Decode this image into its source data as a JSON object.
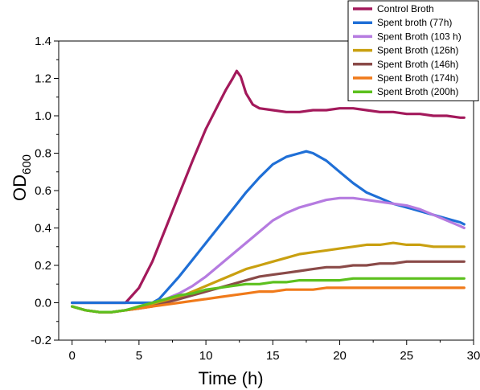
{
  "chart_data": {
    "type": "line",
    "title": "",
    "xlabel": "Time (h)",
    "ylabel_main": "OD",
    "ylabel_sub": "600",
    "xlim": [
      -1,
      30
    ],
    "ylim": [
      -0.2,
      1.4
    ],
    "xticks": [
      0,
      5,
      10,
      15,
      20,
      25,
      30
    ],
    "yticks": [
      -0.2,
      0.0,
      0.2,
      0.4,
      0.6,
      0.8,
      1.0,
      1.2,
      1.4
    ],
    "xtick_labels": [
      "0",
      "5",
      "10",
      "15",
      "20",
      "25",
      "30"
    ],
    "ytick_labels": [
      "-0.2",
      "0.0",
      "0.2",
      "0.4",
      "0.6",
      "0.8",
      "1.0",
      "1.2",
      "1.4"
    ],
    "grid": false,
    "legend_position": "top-right",
    "series": [
      {
        "name": "Control Broth",
        "color": "#a3195b",
        "x": [
          0,
          1,
          2,
          3,
          4,
          5,
          6,
          7,
          8,
          9,
          10,
          11,
          11.5,
          12,
          12.3,
          12.6,
          13,
          13.5,
          14,
          15,
          16,
          17,
          18,
          19,
          20,
          21,
          22,
          23,
          24,
          25,
          26,
          27,
          28,
          29,
          29.3
        ],
        "y": [
          0,
          0,
          0,
          0,
          0,
          0.08,
          0.22,
          0.4,
          0.58,
          0.76,
          0.93,
          1.07,
          1.14,
          1.2,
          1.24,
          1.21,
          1.12,
          1.06,
          1.04,
          1.03,
          1.02,
          1.02,
          1.03,
          1.03,
          1.04,
          1.04,
          1.03,
          1.02,
          1.02,
          1.01,
          1.01,
          1.0,
          1.0,
          0.99,
          0.99
        ]
      },
      {
        "name": "Spent broth (77h)",
        "color": "#1f6fd6",
        "x": [
          0,
          1,
          2,
          3,
          4,
          5,
          6,
          6.5,
          7,
          8,
          9,
          10,
          11,
          12,
          13,
          14,
          15,
          16,
          17,
          17.5,
          18,
          19,
          20,
          21,
          22,
          23,
          24,
          25,
          26,
          27,
          28,
          29,
          29.3
        ],
        "y": [
          0,
          0,
          0,
          0,
          0,
          0,
          0,
          0.02,
          0.06,
          0.14,
          0.23,
          0.32,
          0.41,
          0.5,
          0.59,
          0.67,
          0.74,
          0.78,
          0.8,
          0.81,
          0.8,
          0.76,
          0.7,
          0.64,
          0.59,
          0.56,
          0.53,
          0.51,
          0.49,
          0.47,
          0.45,
          0.43,
          0.42
        ]
      },
      {
        "name": "Spent Broth (103 h)",
        "color": "#b57be0",
        "x": [
          0,
          1,
          2,
          3,
          4,
          5,
          6,
          7,
          8,
          9,
          10,
          11,
          12,
          13,
          14,
          15,
          16,
          17,
          18,
          19,
          20,
          21,
          22,
          23,
          24,
          25,
          26,
          27,
          28,
          29,
          29.3
        ],
        "y": [
          -0.02,
          -0.04,
          -0.05,
          -0.05,
          -0.04,
          -0.02,
          0.0,
          0.02,
          0.05,
          0.09,
          0.14,
          0.2,
          0.26,
          0.32,
          0.38,
          0.44,
          0.48,
          0.51,
          0.53,
          0.55,
          0.56,
          0.56,
          0.55,
          0.54,
          0.53,
          0.52,
          0.5,
          0.47,
          0.44,
          0.41,
          0.4
        ]
      },
      {
        "name": "Spent Broth (126h)",
        "color": "#c9a010",
        "x": [
          0,
          1,
          2,
          3,
          4,
          5,
          6,
          7,
          8,
          9,
          10,
          11,
          12,
          13,
          14,
          15,
          16,
          17,
          18,
          19,
          20,
          21,
          22,
          23,
          24,
          25,
          26,
          27,
          28,
          29,
          29.3
        ],
        "y": [
          -0.02,
          -0.04,
          -0.05,
          -0.05,
          -0.04,
          -0.03,
          -0.01,
          0.01,
          0.03,
          0.06,
          0.09,
          0.12,
          0.15,
          0.18,
          0.2,
          0.22,
          0.24,
          0.26,
          0.27,
          0.28,
          0.29,
          0.3,
          0.31,
          0.31,
          0.32,
          0.31,
          0.31,
          0.3,
          0.3,
          0.3,
          0.3
        ]
      },
      {
        "name": "Spent Broth (146h)",
        "color": "#8a4a48",
        "x": [
          0,
          1,
          2,
          3,
          4,
          5,
          6,
          7,
          8,
          9,
          10,
          11,
          12,
          13,
          14,
          15,
          16,
          17,
          18,
          19,
          20,
          21,
          22,
          23,
          24,
          25,
          26,
          27,
          28,
          29,
          29.3
        ],
        "y": [
          -0.02,
          -0.04,
          -0.05,
          -0.05,
          -0.04,
          -0.03,
          -0.02,
          0.0,
          0.02,
          0.04,
          0.06,
          0.08,
          0.1,
          0.12,
          0.14,
          0.15,
          0.16,
          0.17,
          0.18,
          0.19,
          0.19,
          0.2,
          0.2,
          0.21,
          0.21,
          0.22,
          0.22,
          0.22,
          0.22,
          0.22,
          0.22
        ]
      },
      {
        "name": "Spent Broth (174h)",
        "color": "#f07a1a",
        "x": [
          0,
          1,
          2,
          3,
          4,
          5,
          6,
          7,
          8,
          9,
          10,
          11,
          12,
          13,
          14,
          15,
          16,
          17,
          18,
          19,
          20,
          21,
          22,
          23,
          24,
          25,
          26,
          27,
          28,
          29,
          29.3
        ],
        "y": [
          -0.02,
          -0.04,
          -0.05,
          -0.05,
          -0.04,
          -0.03,
          -0.02,
          -0.01,
          0.0,
          0.01,
          0.02,
          0.03,
          0.04,
          0.05,
          0.06,
          0.06,
          0.07,
          0.07,
          0.07,
          0.08,
          0.08,
          0.08,
          0.08,
          0.08,
          0.08,
          0.08,
          0.08,
          0.08,
          0.08,
          0.08,
          0.08
        ]
      },
      {
        "name": "Spent Broth (200h)",
        "color": "#5cc01e",
        "x": [
          0,
          1,
          2,
          3,
          4,
          5,
          6,
          7,
          8,
          9,
          10,
          11,
          12,
          13,
          14,
          15,
          16,
          17,
          18,
          19,
          20,
          21,
          22,
          23,
          24,
          25,
          26,
          27,
          28,
          29,
          29.3
        ],
        "y": [
          -0.02,
          -0.04,
          -0.05,
          -0.05,
          -0.04,
          -0.02,
          0.0,
          0.02,
          0.04,
          0.05,
          0.07,
          0.08,
          0.09,
          0.1,
          0.1,
          0.11,
          0.11,
          0.12,
          0.12,
          0.12,
          0.12,
          0.13,
          0.13,
          0.13,
          0.13,
          0.13,
          0.13,
          0.13,
          0.13,
          0.13,
          0.13
        ]
      }
    ]
  }
}
